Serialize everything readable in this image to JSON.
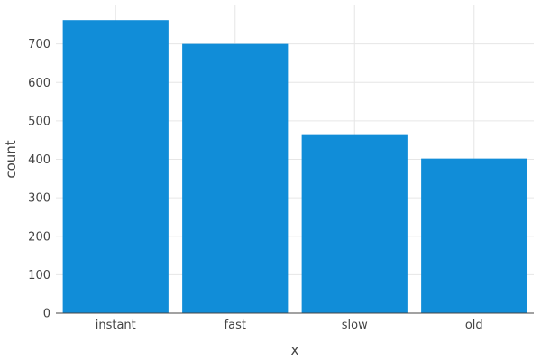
{
  "chart_data": {
    "type": "bar",
    "categories": [
      "instant",
      "fast",
      "slow",
      "old"
    ],
    "values": [
      762,
      700,
      463,
      402
    ],
    "title": "",
    "xlabel": "x",
    "ylabel": "count",
    "ylim": [
      0,
      800
    ],
    "yticks": [
      0,
      100,
      200,
      300,
      400,
      500,
      600,
      700
    ],
    "grid": true,
    "legend": "none",
    "bar_color": "#118dd8"
  }
}
